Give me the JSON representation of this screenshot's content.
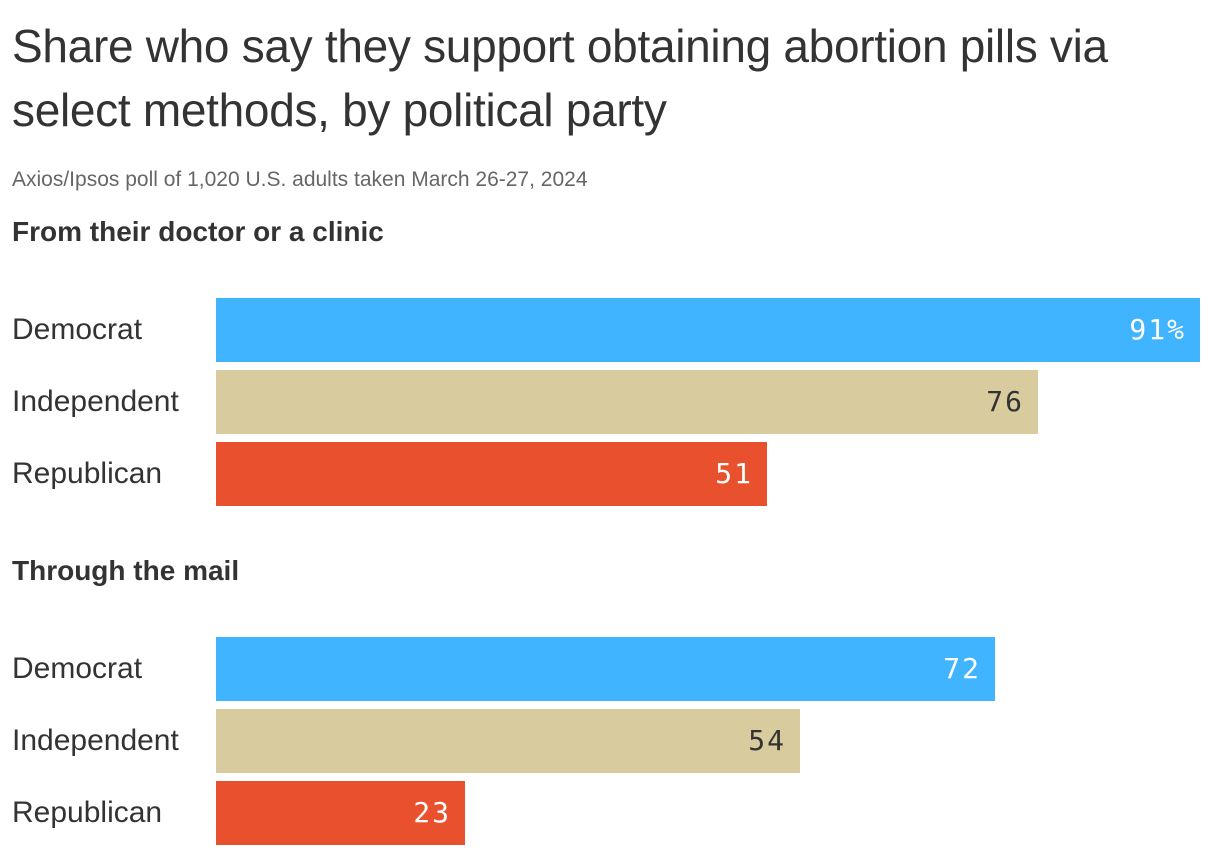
{
  "header": {
    "title": "Share who say they support obtaining abortion pills via select methods, by political party",
    "subtitle": "Axios/Ipsos poll of 1,020 U.S. adults taken March 26-27, 2024"
  },
  "colors": {
    "Democrat": "#40b4fe",
    "Independent": "#d8cc9f",
    "Republican": "#e9502e",
    "label_on_dark": "#ffffff",
    "label_on_light": "#333333"
  },
  "chart_data": [
    {
      "type": "bar",
      "orientation": "horizontal",
      "title": "From their doctor or a clinic",
      "categories": [
        "Democrat",
        "Independent",
        "Republican"
      ],
      "values": [
        91,
        76,
        51
      ],
      "value_labels": [
        "91%",
        "76",
        "51"
      ],
      "unit": "%",
      "xlim": [
        0,
        91
      ],
      "grid": false,
      "legend": "none"
    },
    {
      "type": "bar",
      "orientation": "horizontal",
      "title": "Through the mail",
      "categories": [
        "Democrat",
        "Independent",
        "Republican"
      ],
      "values": [
        72,
        54,
        23
      ],
      "value_labels": [
        "72",
        "54",
        "23"
      ],
      "unit": "%",
      "xlim": [
        0,
        91
      ],
      "grid": false,
      "legend": "none"
    }
  ]
}
